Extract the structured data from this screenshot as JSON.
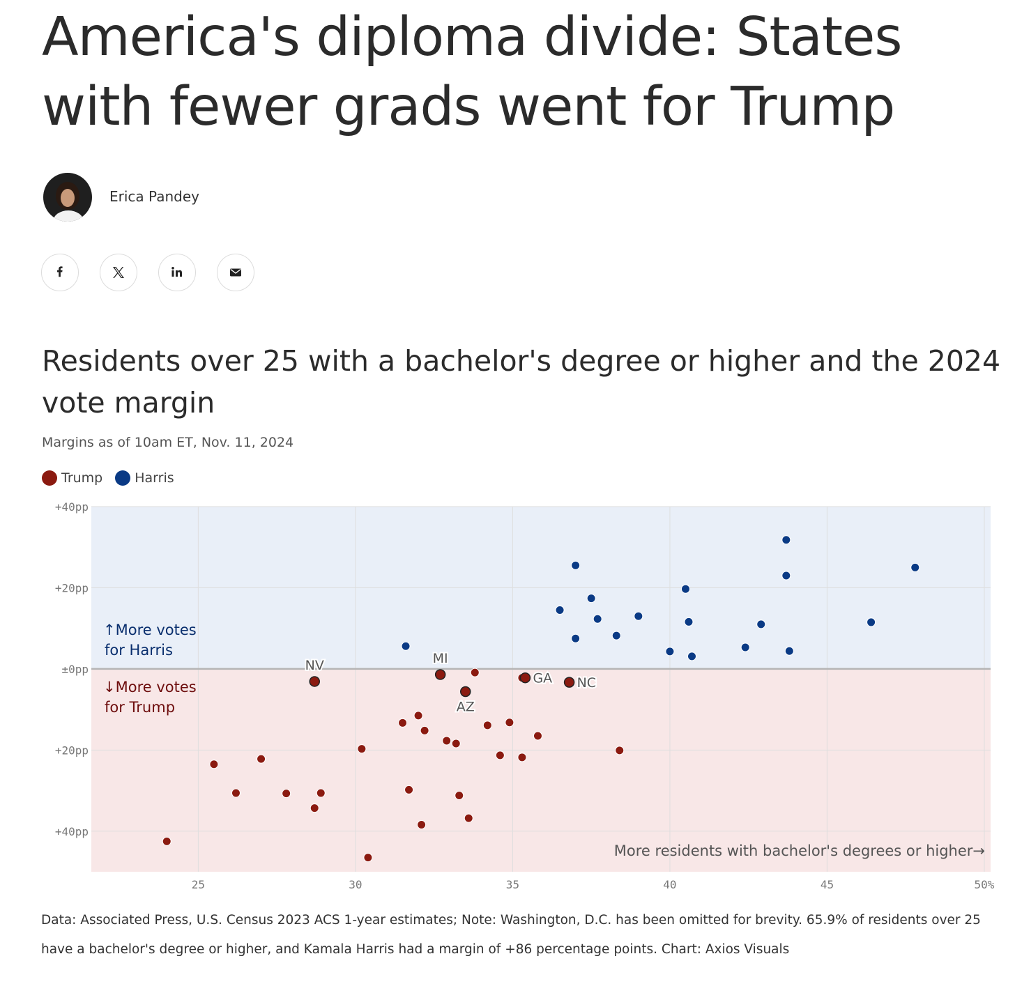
{
  "article": {
    "headline": "America's diploma divide: States with fewer grads went for Trump",
    "author": "Erica Pandey"
  },
  "share": [
    {
      "name": "facebook-icon",
      "glyph": "f"
    },
    {
      "name": "x-icon",
      "glyph": "𝕏"
    },
    {
      "name": "linkedin-icon",
      "glyph": "in"
    },
    {
      "name": "email-icon",
      "glyph": "✉"
    }
  ],
  "colors": {
    "trump": "#8b1a10",
    "harris": "#0a3a85",
    "harris_bg": "#e9eff8",
    "trump_bg": "#f8e7e7",
    "harris_text": "#0a2f6e",
    "trump_text": "#6e0e0e"
  },
  "legend": [
    {
      "label": "Trump",
      "color": "#8b1a10"
    },
    {
      "label": "Harris",
      "color": "#0a3a85"
    }
  ],
  "chart_data": {
    "type": "scatter",
    "title": "Residents over 25 with a bachelor's degree or higher and the 2024 vote margin",
    "subtitle": "Margins as of 10am ET, Nov. 11, 2024",
    "xlabel": "More residents with bachelor's degrees or higher→",
    "xlim": [
      21.6,
      50.2
    ],
    "ylim": [
      -50,
      40
    ],
    "x_ticks": [
      {
        "value": 25,
        "label": "25"
      },
      {
        "value": 30,
        "label": "30"
      },
      {
        "value": 35,
        "label": "35"
      },
      {
        "value": 40,
        "label": "40"
      },
      {
        "value": 45,
        "label": "45"
      },
      {
        "value": 50,
        "label": "50%"
      }
    ],
    "y_ticks": [
      {
        "value": 40,
        "label": "+40pp"
      },
      {
        "value": 20,
        "label": "+20pp"
      },
      {
        "value": 0,
        "label": "±0pp"
      },
      {
        "value": -20,
        "label": "+20pp"
      },
      {
        "value": -40,
        "label": "+40pp"
      }
    ],
    "region_labels": {
      "harris": [
        "↑More votes",
        "for Harris"
      ],
      "trump": [
        "↓More votes",
        "for Trump"
      ]
    },
    "series": [
      {
        "name": "Harris",
        "color": "#0a3a85",
        "points": [
          {
            "x": 31.6,
            "y": 5.6
          },
          {
            "x": 36.5,
            "y": 14.5
          },
          {
            "x": 37.0,
            "y": 25.5
          },
          {
            "x": 37.0,
            "y": 7.5
          },
          {
            "x": 37.5,
            "y": 17.4
          },
          {
            "x": 37.7,
            "y": 12.3
          },
          {
            "x": 38.3,
            "y": 8.2
          },
          {
            "x": 39.0,
            "y": 13.0
          },
          {
            "x": 40.0,
            "y": 4.3
          },
          {
            "x": 40.5,
            "y": 19.7
          },
          {
            "x": 40.6,
            "y": 11.6
          },
          {
            "x": 40.7,
            "y": 3.1
          },
          {
            "x": 42.4,
            "y": 5.3
          },
          {
            "x": 42.9,
            "y": 11.0
          },
          {
            "x": 43.7,
            "y": 31.8
          },
          {
            "x": 43.7,
            "y": 23.0
          },
          {
            "x": 43.8,
            "y": 4.4
          },
          {
            "x": 46.4,
            "y": 11.5
          },
          {
            "x": 47.8,
            "y": 25.0
          }
        ]
      },
      {
        "name": "Trump",
        "color": "#8b1a10",
        "points": [
          {
            "x": 24.0,
            "y": -42.5
          },
          {
            "x": 25.5,
            "y": -23.5
          },
          {
            "x": 26.2,
            "y": -30.6
          },
          {
            "x": 27.0,
            "y": -22.2
          },
          {
            "x": 27.8,
            "y": -30.7
          },
          {
            "x": 28.7,
            "y": -3.1,
            "label": "NV",
            "label_pos": "above"
          },
          {
            "x": 28.7,
            "y": -34.3
          },
          {
            "x": 28.9,
            "y": -30.6
          },
          {
            "x": 30.2,
            "y": -19.7
          },
          {
            "x": 30.4,
            "y": -46.5
          },
          {
            "x": 31.5,
            "y": -13.3
          },
          {
            "x": 31.7,
            "y": -29.8
          },
          {
            "x": 32.0,
            "y": -11.5
          },
          {
            "x": 32.1,
            "y": -38.4
          },
          {
            "x": 32.2,
            "y": -15.2
          },
          {
            "x": 32.7,
            "y": -1.4,
            "label": "MI",
            "label_pos": "above"
          },
          {
            "x": 32.9,
            "y": -17.7
          },
          {
            "x": 33.2,
            "y": -18.4
          },
          {
            "x": 33.3,
            "y": -31.2
          },
          {
            "x": 33.5,
            "y": -5.6,
            "label": "AZ",
            "label_pos": "below"
          },
          {
            "x": 33.6,
            "y": -36.8
          },
          {
            "x": 33.8,
            "y": -0.9
          },
          {
            "x": 34.2,
            "y": -13.9
          },
          {
            "x": 34.6,
            "y": -21.3
          },
          {
            "x": 34.9,
            "y": -13.2
          },
          {
            "x": 35.3,
            "y": -21.8
          },
          {
            "x": 35.3,
            "y": -2.2
          },
          {
            "x": 35.4,
            "y": -2.2,
            "label": "GA",
            "label_pos": "right"
          },
          {
            "x": 35.8,
            "y": -16.5
          },
          {
            "x": 36.8,
            "y": -3.3,
            "label": "NC",
            "label_pos": "right"
          },
          {
            "x": 38.4,
            "y": -20.1
          }
        ]
      }
    ]
  },
  "source": {
    "line1": "Data: Associated Press, U.S. Census 2023 ACS 1-year estimates; Note: Washington, D.C. has been omitted for brevity. 65.9% of residents over 25",
    "line2": "have a bachelor's degree or higher, and Kamala Harris had a margin of +86 percentage points.  Chart: Axios Visuals"
  }
}
